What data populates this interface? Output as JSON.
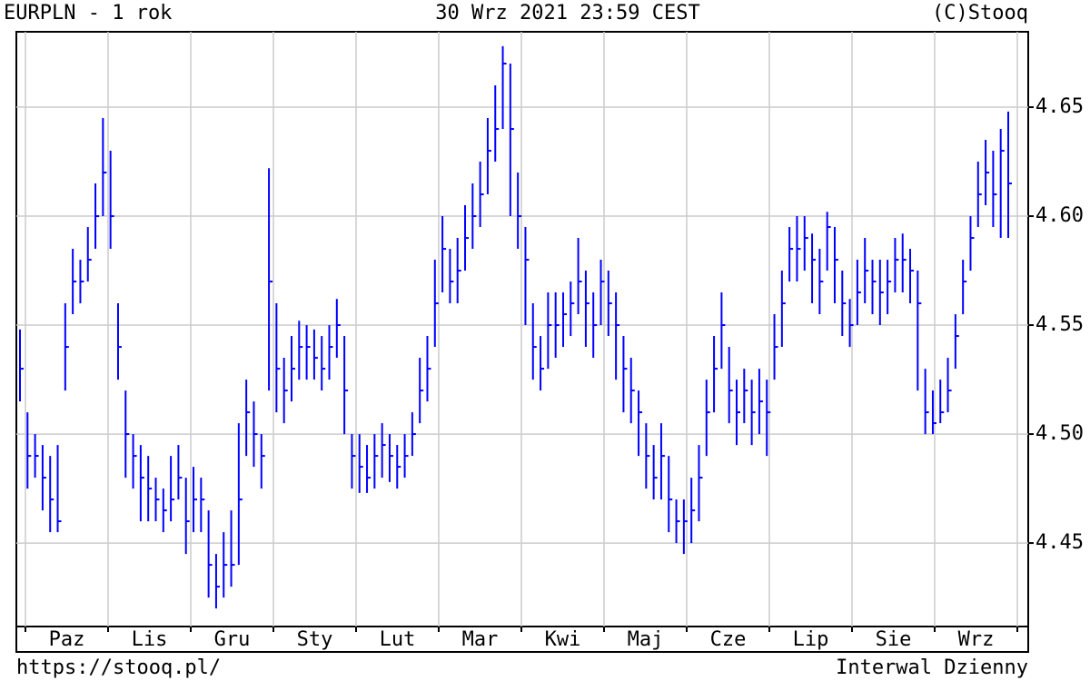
{
  "chart_data": {
    "type": "ohlc",
    "title": "EURPLN - 1 rok",
    "subtitle": "30 Wrz 2021 23:59 CEST",
    "credit": "(C)Stooq",
    "source": "https://stooq.pl/",
    "interval": "Interwal Dzienny",
    "categories": [
      "Paz",
      "Lis",
      "Gru",
      "Sty",
      "Lut",
      "Mar",
      "Kwi",
      "Maj",
      "Cze",
      "Lip",
      "Sie",
      "Wrz"
    ],
    "ylim": [
      4.4117,
      4.6846
    ],
    "yticks": [
      {
        "value": 4.45,
        "label": "4.45"
      },
      {
        "value": 4.5,
        "label": "4.50"
      },
      {
        "value": 4.55,
        "label": "4.55"
      },
      {
        "value": 4.6,
        "label": "4.60"
      },
      {
        "value": 4.65,
        "label": "4.65"
      }
    ],
    "grid": true,
    "color": "#0000ff",
    "series": [
      {
        "name": "EURPLN",
        "high": [
          4.548,
          4.51,
          4.5,
          4.495,
          4.49,
          4.495,
          4.56,
          4.585,
          4.58,
          4.595,
          4.615,
          4.645,
          4.63,
          4.56,
          4.52,
          4.5,
          4.495,
          4.49,
          4.48,
          4.475,
          4.49,
          4.495,
          4.48,
          4.485,
          4.48,
          4.465,
          4.445,
          4.455,
          4.465,
          4.505,
          4.525,
          4.515,
          4.5,
          4.622,
          4.56,
          4.535,
          4.545,
          4.552,
          4.55,
          4.548,
          4.545,
          4.55,
          4.562,
          4.545,
          4.5,
          4.5,
          4.495,
          4.5,
          4.505,
          4.5,
          4.495,
          4.5,
          4.51,
          4.535,
          4.545,
          4.58,
          4.6,
          4.585,
          4.59,
          4.605,
          4.615,
          4.625,
          4.645,
          4.66,
          4.678,
          4.67,
          4.62,
          4.595,
          4.56,
          4.545,
          4.565,
          4.565,
          4.565,
          4.57,
          4.59,
          4.575,
          4.565,
          4.58,
          4.575,
          4.565,
          4.545,
          4.535,
          4.52,
          4.505,
          4.495,
          4.505,
          4.49,
          4.47,
          4.47,
          4.48,
          4.495,
          4.525,
          4.545,
          4.565,
          4.54,
          4.525,
          4.53,
          4.525,
          4.53,
          4.525,
          4.555,
          4.575,
          4.595,
          4.6,
          4.6,
          4.592,
          4.585,
          4.602,
          4.595,
          4.575,
          4.562,
          4.58,
          4.59,
          4.58,
          4.58,
          4.58,
          4.59,
          4.592,
          4.585,
          4.575,
          4.53,
          4.52,
          4.525,
          4.535,
          4.555,
          4.58,
          4.6,
          4.625,
          4.635,
          4.63,
          4.64,
          4.648
        ],
        "low": [
          4.515,
          4.475,
          4.48,
          4.465,
          4.455,
          4.455,
          4.52,
          4.555,
          4.56,
          4.57,
          4.585,
          4.6,
          4.585,
          4.525,
          4.48,
          4.475,
          4.46,
          4.46,
          4.46,
          4.455,
          4.46,
          4.47,
          4.445,
          4.455,
          4.455,
          4.425,
          4.42,
          4.425,
          4.43,
          4.44,
          4.49,
          4.485,
          4.475,
          4.52,
          4.51,
          4.505,
          4.515,
          4.525,
          4.525,
          4.525,
          4.52,
          4.525,
          4.535,
          4.5,
          4.475,
          4.473,
          4.473,
          4.475,
          4.48,
          4.478,
          4.475,
          4.48,
          4.49,
          4.505,
          4.515,
          4.54,
          4.565,
          4.56,
          4.56,
          4.575,
          4.585,
          4.595,
          4.61,
          4.625,
          4.64,
          4.6,
          4.585,
          4.55,
          4.525,
          4.52,
          4.53,
          4.535,
          4.54,
          4.545,
          4.555,
          4.54,
          4.535,
          4.55,
          4.545,
          4.525,
          4.51,
          4.505,
          4.49,
          4.475,
          4.47,
          4.47,
          4.455,
          4.45,
          4.445,
          4.45,
          4.46,
          4.49,
          4.51,
          4.53,
          4.505,
          4.495,
          4.505,
          4.495,
          4.5,
          4.49,
          4.525,
          4.54,
          4.57,
          4.57,
          4.575,
          4.56,
          4.555,
          4.575,
          4.56,
          4.545,
          4.54,
          4.55,
          4.56,
          4.555,
          4.55,
          4.555,
          4.565,
          4.565,
          4.56,
          4.52,
          4.5,
          4.5,
          4.505,
          4.51,
          4.53,
          4.555,
          4.575,
          4.595,
          4.605,
          4.595,
          4.59,
          4.59
        ],
        "close": [
          4.53,
          4.49,
          4.49,
          4.48,
          4.47,
          4.46,
          4.54,
          4.57,
          4.57,
          4.58,
          4.6,
          4.62,
          4.6,
          4.54,
          4.5,
          4.49,
          4.48,
          4.475,
          4.47,
          4.465,
          4.47,
          4.48,
          4.46,
          4.47,
          4.47,
          4.44,
          4.43,
          4.44,
          4.44,
          4.47,
          4.51,
          4.5,
          4.49,
          4.57,
          4.53,
          4.52,
          4.53,
          4.54,
          4.54,
          4.535,
          4.53,
          4.54,
          4.55,
          4.52,
          4.49,
          4.485,
          4.48,
          4.49,
          4.495,
          4.49,
          4.485,
          4.49,
          4.5,
          4.52,
          4.53,
          4.56,
          4.585,
          4.57,
          4.575,
          4.59,
          4.6,
          4.61,
          4.63,
          4.64,
          4.67,
          4.64,
          4.6,
          4.58,
          4.54,
          4.53,
          4.55,
          4.55,
          4.555,
          4.56,
          4.57,
          4.56,
          4.55,
          4.57,
          4.56,
          4.55,
          4.53,
          4.52,
          4.51,
          4.49,
          4.48,
          4.49,
          4.47,
          4.46,
          4.46,
          4.465,
          4.48,
          4.51,
          4.53,
          4.55,
          4.52,
          4.51,
          4.52,
          4.51,
          4.515,
          4.51,
          4.54,
          4.56,
          4.585,
          4.585,
          4.59,
          4.58,
          4.57,
          4.595,
          4.58,
          4.56,
          4.55,
          4.565,
          4.575,
          4.57,
          4.565,
          4.57,
          4.58,
          4.58,
          4.575,
          4.56,
          4.51,
          4.505,
          4.51,
          4.52,
          4.545,
          4.57,
          4.59,
          4.61,
          4.62,
          4.61,
          4.63,
          4.615
        ]
      }
    ]
  }
}
